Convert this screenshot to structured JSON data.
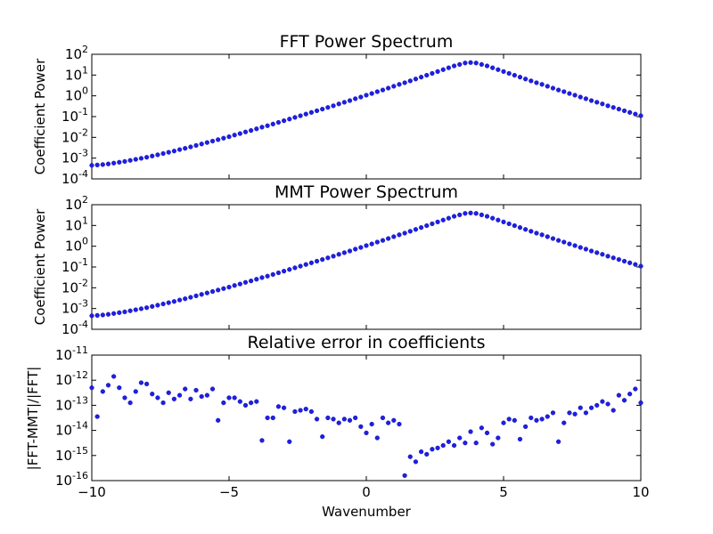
{
  "chart_data": [
    {
      "type": "scatter",
      "title": "FFT Power Spectrum",
      "xlabel": "",
      "ylabel": "Coefficient Power",
      "yscale": "log",
      "xlim": [
        -10,
        10
      ],
      "ylim": [
        0.0001,
        100
      ],
      "yticks": [
        -4,
        -3,
        -2,
        -1,
        0,
        1,
        2
      ],
      "ytick_labels": [
        "10^-4",
        "10^-3",
        "10^-2",
        "10^-1",
        "10^0",
        "10^1",
        "10^2"
      ],
      "marker_color": "#1f1fe6",
      "series": [
        {
          "description": "approx. exponential (symmetric), 0.2 spacing",
          "x_start": -10,
          "x_step": 0.2,
          "count": 101,
          "values_log10": [
            -3.35,
            -3.33,
            -3.31,
            -3.28,
            -3.24,
            -3.2,
            -3.16,
            -3.11,
            -3.06,
            -3.01,
            -2.96,
            -2.9,
            -2.84,
            -2.78,
            -2.72,
            -2.66,
            -2.59,
            -2.53,
            -2.46,
            -2.39,
            -2.32,
            -2.25,
            -2.18,
            -2.11,
            -2.04,
            -1.97,
            -1.89,
            -1.82,
            -1.74,
            -1.67,
            -1.59,
            -1.51,
            -1.44,
            -1.36,
            -1.28,
            -1.2,
            -1.12,
            -1.04,
            -0.96,
            -0.88,
            -0.8,
            -0.72,
            -0.64,
            -0.56,
            -0.48,
            -0.39,
            -0.31,
            -0.23,
            -0.14,
            -0.06,
            0.03,
            0.11,
            0.2,
            0.28,
            0.37,
            0.46,
            0.55,
            0.63,
            0.72,
            0.81,
            0.9,
            0.99,
            1.08,
            1.17,
            1.26,
            1.35,
            1.44,
            1.51,
            1.58,
            1.6,
            1.58,
            1.51,
            1.44,
            1.35,
            1.26,
            1.17,
            1.08,
            0.99,
            0.9,
            0.81,
            0.72,
            0.63,
            0.55,
            0.46,
            0.37,
            0.28,
            0.2,
            0.11,
            0.03,
            -0.06,
            -0.14,
            -0.23,
            -0.31,
            -0.39,
            -0.48,
            -0.56,
            -0.64,
            -0.72,
            -0.8,
            -0.88,
            -0.96
          ]
        }
      ]
    },
    {
      "type": "scatter",
      "title": "MMT Power Spectrum",
      "xlabel": "",
      "ylabel": "Coefficient Power",
      "yscale": "log",
      "xlim": [
        -10,
        10
      ],
      "ylim": [
        0.0001,
        100
      ],
      "yticks": [
        -4,
        -3,
        -2,
        -1,
        0,
        1,
        2
      ],
      "ytick_labels": [
        "10^-4",
        "10^-3",
        "10^-2",
        "10^-1",
        "10^0",
        "10^1",
        "10^2"
      ],
      "marker_color": "#1f1fe6",
      "series": [
        {
          "description": "same as FFT spectrum",
          "x_start": -10,
          "x_step": 0.2,
          "count": 101,
          "values_log10": "same_as_fft"
        }
      ]
    },
    {
      "type": "scatter",
      "title": "Relative error in coefficients",
      "xlabel": "Wavenumber",
      "ylabel": "|FFT-MMT|/|FFT|",
      "yscale": "log",
      "xlim": [
        -10,
        10
      ],
      "ylim": [
        1e-16,
        1e-11
      ],
      "xticks": [
        -10,
        -5,
        0,
        5,
        10
      ],
      "xtick_labels": [
        "−10",
        "−5",
        "0",
        "5",
        "10"
      ],
      "yticks": [
        -16,
        -15,
        -14,
        -13,
        -12,
        -11
      ],
      "ytick_labels": [
        "10^-16",
        "10^-15",
        "10^-14",
        "10^-13",
        "10^-12",
        "10^-11"
      ],
      "marker_color": "#1f1fe6",
      "series": [
        {
          "x_start": -10,
          "x_step": 0.2,
          "count": 101,
          "values_log10": [
            -12.3,
            -13.45,
            -12.45,
            -12.2,
            -11.85,
            -12.3,
            -12.7,
            -12.9,
            -12.45,
            -12.1,
            -12.15,
            -12.55,
            -12.7,
            -12.9,
            -12.5,
            -12.75,
            -12.6,
            -12.35,
            -12.75,
            -12.4,
            -12.65,
            -12.6,
            -12.35,
            -13.6,
            -12.9,
            -12.7,
            -12.7,
            -12.85,
            -13.0,
            -12.9,
            -12.85,
            -14.4,
            -13.5,
            -13.5,
            -13.05,
            -13.1,
            -14.45,
            -13.25,
            -13.2,
            -13.15,
            -13.25,
            -13.55,
            -14.25,
            -13.5,
            -13.55,
            -13.7,
            -13.55,
            -13.6,
            -13.5,
            -13.85,
            -14.1,
            -13.75,
            -14.3,
            -13.5,
            -13.7,
            -13.6,
            -13.75,
            -15.8,
            -15.05,
            -15.25,
            -14.85,
            -14.95,
            -14.75,
            -14.7,
            -14.6,
            -14.45,
            -14.6,
            -14.3,
            -14.5,
            -14.05,
            -14.5,
            -13.9,
            -14.1,
            -14.55,
            -14.3,
            -13.7,
            -13.55,
            -13.6,
            -14.35,
            -13.85,
            -13.5,
            -13.6,
            -13.55,
            -13.45,
            -13.3,
            -14.45,
            -13.7,
            -13.3,
            -13.35,
            -13.1,
            -13.3,
            -13.1,
            -13.0,
            -12.85,
            -12.95,
            -13.2,
            -12.6,
            -12.8,
            -12.55,
            -12.35,
            -12.9
          ]
        }
      ]
    }
  ]
}
